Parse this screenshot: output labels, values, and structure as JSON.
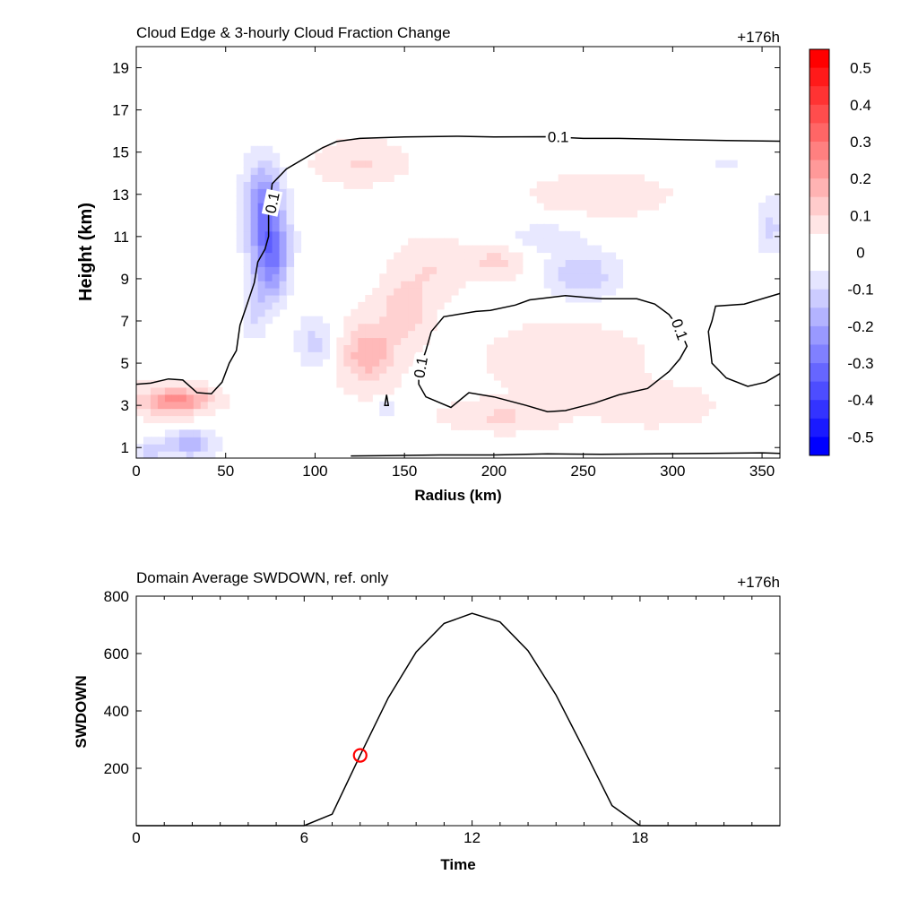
{
  "chart_data": [
    {
      "type": "heatmap",
      "title": "Cloud Edge & 3-hourly Cloud Fraction Change",
      "time_label": "+176h",
      "xlabel": "Radius (km)",
      "ylabel": "Height (km)",
      "xlim": [
        0,
        360
      ],
      "ylim": [
        0.5,
        20
      ],
      "xticks": [
        0,
        50,
        100,
        150,
        200,
        250,
        300,
        350
      ],
      "yticks": [
        1,
        3,
        5,
        7,
        9,
        11,
        13,
        15,
        17,
        19
      ],
      "colorbar": {
        "min": -0.55,
        "max": 0.55,
        "step": 0.05,
        "labels": [
          "0.5",
          "0.4",
          "0.3",
          "0.2",
          "0.1",
          "0",
          "-0.1",
          "-0.2",
          "-0.3",
          "-0.4",
          "-0.5"
        ],
        "label_values": [
          0.5,
          0.4,
          0.3,
          0.2,
          0.1,
          0,
          -0.1,
          -0.2,
          -0.3,
          -0.4,
          -0.5
        ],
        "positive_color": "#ff0000",
        "negative_color": "#0000ff"
      },
      "features": [
        {
          "r": 74,
          "z": 11.0,
          "sr": 8,
          "sz": 1.6,
          "v": -0.24
        },
        {
          "r": 70,
          "z": 13.0,
          "sr": 7,
          "sz": 1.3,
          "v": -0.16
        },
        {
          "r": 76,
          "z": 9.5,
          "sr": 6,
          "sz": 1.2,
          "v": -0.14
        },
        {
          "r": 66,
          "z": 7.5,
          "sr": 5,
          "sz": 1.0,
          "v": -0.1
        },
        {
          "r": 100,
          "z": 6.0,
          "sr": 8,
          "sz": 0.9,
          "v": -0.1
        },
        {
          "r": 18,
          "z": 3.2,
          "sr": 12,
          "sz": 0.45,
          "v": 0.18
        },
        {
          "r": 30,
          "z": 3.3,
          "sr": 10,
          "sz": 0.35,
          "v": 0.1
        },
        {
          "r": 30,
          "z": 1.2,
          "sr": 10,
          "sz": 0.45,
          "v": -0.18
        },
        {
          "r": 8,
          "z": 0.9,
          "sr": 6,
          "sz": 0.35,
          "v": -0.12
        },
        {
          "r": 130,
          "z": 5.5,
          "sr": 10,
          "sz": 1.0,
          "v": 0.16
        },
        {
          "r": 150,
          "z": 7.5,
          "sr": 9,
          "sz": 1.0,
          "v": 0.1
        },
        {
          "r": 165,
          "z": 9.5,
          "sr": 12,
          "sz": 0.9,
          "v": 0.06
        },
        {
          "r": 200,
          "z": 9.8,
          "sr": 10,
          "sz": 0.5,
          "v": 0.08
        },
        {
          "r": 125,
          "z": 14.5,
          "sr": 15,
          "sz": 0.6,
          "v": 0.07
        },
        {
          "r": 250,
          "z": 9.2,
          "sr": 14,
          "sz": 0.8,
          "v": -0.13
        },
        {
          "r": 228,
          "z": 11.0,
          "sr": 16,
          "sz": 0.5,
          "v": -0.06
        },
        {
          "r": 140,
          "z": 2.8,
          "sr": 4,
          "sz": 0.3,
          "v": -0.1
        },
        {
          "r": 205,
          "z": 2.5,
          "sr": 20,
          "sz": 0.45,
          "v": 0.07
        },
        {
          "r": 290,
          "z": 3.0,
          "sr": 20,
          "sz": 0.6,
          "v": 0.05
        },
        {
          "r": 240,
          "z": 5.2,
          "sr": 30,
          "sz": 1.2,
          "v": 0.04
        },
        {
          "r": 355,
          "z": 11.5,
          "sr": 6,
          "sz": 1.0,
          "v": -0.1
        },
        {
          "r": 260,
          "z": 13.0,
          "sr": 30,
          "sz": 0.8,
          "v": 0.03
        },
        {
          "r": 330,
          "z": 14.5,
          "sr": 20,
          "sz": 0.5,
          "v": -0.04
        }
      ],
      "contours": [
        {
          "label": "0.1",
          "points": [
            [
              0,
              4.0
            ],
            [
              8,
              4.05
            ],
            [
              18,
              4.25
            ],
            [
              26,
              4.2
            ],
            [
              34,
              3.6
            ],
            [
              42,
              3.55
            ],
            [
              48,
              4.1
            ],
            [
              52,
              5.0
            ],
            [
              56,
              5.6
            ],
            [
              58,
              6.8
            ],
            [
              62,
              7.8
            ],
            [
              66,
              8.8
            ],
            [
              68,
              9.8
            ],
            [
              72,
              10.4
            ],
            [
              74,
              11.0
            ],
            [
              74,
              12.0
            ],
            [
              76,
              13.5
            ],
            [
              84,
              14.2
            ],
            [
              96,
              14.8
            ],
            [
              104,
              15.2
            ],
            [
              112,
              15.5
            ],
            [
              125,
              15.65
            ],
            [
              150,
              15.72
            ],
            [
              180,
              15.75
            ],
            [
              200,
              15.72
            ],
            [
              230,
              15.73
            ],
            [
              250,
              15.65
            ],
            [
              270,
              15.65
            ],
            [
              300,
              15.6
            ],
            [
              330,
              15.55
            ],
            [
              360,
              15.52
            ]
          ]
        },
        {
          "label": "0.1",
          "points": [
            [
              165,
              6.5
            ],
            [
              172,
              7.2
            ],
            [
              190,
              7.45
            ],
            [
              198,
              7.5
            ],
            [
              212,
              7.75
            ],
            [
              220,
              8.0
            ],
            [
              240,
              8.2
            ],
            [
              260,
              8.05
            ],
            [
              280,
              8.05
            ],
            [
              290,
              7.8
            ],
            [
              298,
              7.3
            ],
            [
              304,
              6.6
            ],
            [
              308,
              5.8
            ],
            [
              304,
              5.2
            ],
            [
              298,
              4.6
            ],
            [
              286,
              3.8
            ],
            [
              270,
              3.5
            ],
            [
              256,
              3.1
            ],
            [
              240,
              2.75
            ],
            [
              230,
              2.7
            ],
            [
              218,
              3.0
            ],
            [
              200,
              3.4
            ],
            [
              186,
              3.6
            ],
            [
              176,
              2.9
            ],
            [
              162,
              3.4
            ],
            [
              158,
              4.0
            ],
            [
              158,
              4.6
            ],
            [
              162,
              5.6
            ],
            [
              165,
              6.5
            ]
          ]
        },
        {
          "label": "",
          "points": [
            [
              360,
              8.3
            ],
            [
              340,
              7.8
            ],
            [
              324,
              7.7
            ],
            [
              322,
              7.0
            ],
            [
              320,
              6.5
            ],
            [
              322,
              5.0
            ],
            [
              330,
              4.3
            ],
            [
              342,
              3.9
            ],
            [
              352,
              4.1
            ],
            [
              360,
              4.5
            ]
          ]
        },
        {
          "label": "",
          "points": [
            [
              140,
              3.5
            ],
            [
              139,
              3.0
            ],
            [
              141,
              3.0
            ],
            [
              140,
              3.5
            ]
          ]
        },
        {
          "label": "",
          "points": [
            [
              120,
              0.6
            ],
            [
              140,
              0.62
            ],
            [
              170,
              0.65
            ],
            [
              200,
              0.65
            ],
            [
              230,
              0.7
            ],
            [
              260,
              0.68
            ],
            [
              290,
              0.7
            ],
            [
              320,
              0.72
            ],
            [
              350,
              0.75
            ],
            [
              360,
              0.72
            ]
          ]
        }
      ],
      "contour_labels": [
        {
          "text": "0.1",
          "x": 236,
          "y": 15.73,
          "rot": 0
        },
        {
          "text": "0.1",
          "x": 76,
          "y": 12.6,
          "rot": -78
        },
        {
          "text": "0.1",
          "x": 159,
          "y": 4.8,
          "rot": -80
        },
        {
          "text": "0.1",
          "x": 304,
          "y": 6.6,
          "rot": 70
        }
      ]
    },
    {
      "type": "line",
      "title": "Domain Average SWDOWN, ref. only",
      "time_label": "+176h",
      "xlabel": "Time",
      "ylabel": "SWDOWN",
      "xlim": [
        0,
        23
      ],
      "ylim": [
        0,
        800
      ],
      "xticks": [
        0,
        6,
        12,
        18
      ],
      "yticks": [
        200,
        400,
        600,
        800
      ],
      "series": [
        {
          "x": [
            0,
            1,
            2,
            3,
            4,
            5,
            6,
            7,
            8,
            9,
            10,
            11,
            12,
            13,
            14,
            15,
            16,
            17,
            18,
            19,
            20,
            21,
            22,
            23
          ],
          "values": [
            0,
            0,
            0,
            0,
            0,
            0,
            0,
            40,
            245,
            445,
            605,
            705,
            740,
            710,
            610,
            455,
            265,
            70,
            0,
            0,
            0,
            0,
            0,
            0
          ],
          "color": "#000000"
        }
      ],
      "marker": {
        "x": 8,
        "y": 245,
        "color": "#ff0000"
      }
    }
  ]
}
